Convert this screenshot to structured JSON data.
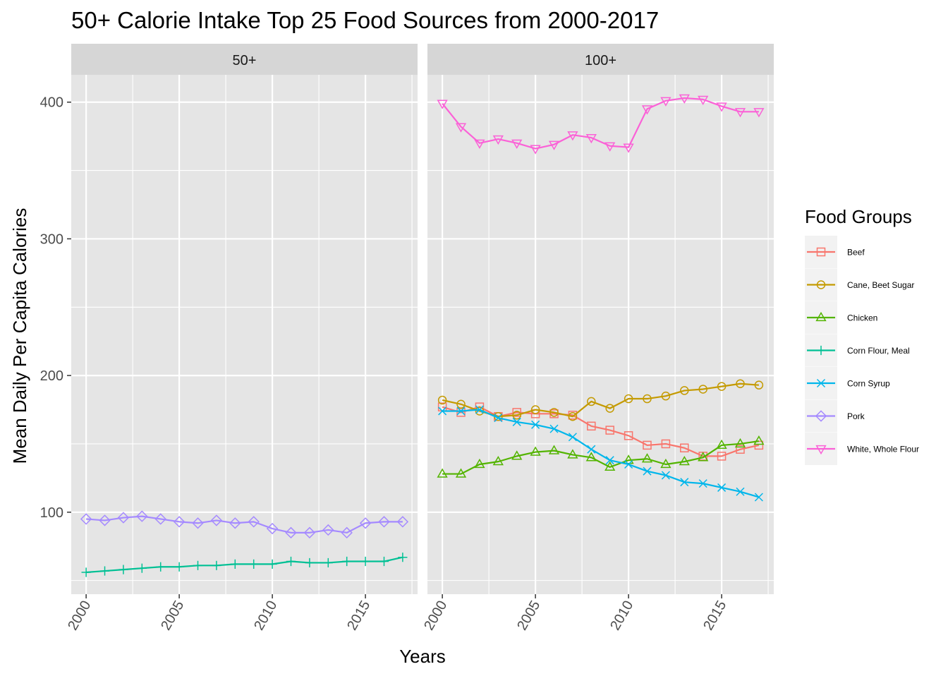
{
  "chart_data": {
    "type": "line",
    "title": "50+ Calorie Intake Top 25 Food Sources from 2000-2017",
    "xlabel": "Years",
    "ylabel": "Mean Daily Per Capita Calories",
    "xlim": [
      1999.2,
      2017.8
    ],
    "ylim": [
      40,
      420
    ],
    "x_ticks": [
      2000,
      2005,
      2010,
      2015
    ],
    "y_ticks": [
      100,
      200,
      300,
      400
    ],
    "grid": true,
    "legend": {
      "title": "Food Groups",
      "position": "right"
    },
    "facets": [
      "50+",
      "100+"
    ],
    "x": [
      2000,
      2001,
      2002,
      2003,
      2004,
      2005,
      2006,
      2007,
      2008,
      2009,
      2010,
      2011,
      2012,
      2013,
      2014,
      2015,
      2016,
      2017
    ],
    "series": [
      {
        "name": "Beef",
        "facet": "100+",
        "color": "#F8766D",
        "shape": "square",
        "values": [
          177,
          173,
          177,
          170,
          173,
          172,
          172,
          171,
          163,
          160,
          156,
          149,
          150,
          147,
          141,
          141,
          146,
          149
        ]
      },
      {
        "name": "Cane, Beet Sugar",
        "facet": "100+",
        "color": "#C49A00",
        "shape": "circle",
        "values": [
          182,
          179,
          174,
          170,
          171,
          175,
          173,
          170,
          181,
          176,
          183,
          183,
          185,
          189,
          190,
          192,
          194,
          193
        ]
      },
      {
        "name": "Chicken",
        "facet": "100+",
        "color": "#53B400",
        "shape": "triangle-up",
        "values": [
          128,
          128,
          135,
          137,
          141,
          144,
          145,
          142,
          140,
          133,
          138,
          139,
          135,
          137,
          140,
          149,
          150,
          152
        ]
      },
      {
        "name": "Corn Flour, Meal",
        "facet": "50+",
        "color": "#00C094",
        "shape": "plus",
        "values": [
          56,
          57,
          58,
          59,
          60,
          60,
          61,
          61,
          62,
          62,
          62,
          64,
          63,
          63,
          64,
          64,
          64,
          67
        ]
      },
      {
        "name": "Corn Syrup",
        "facet": "100+",
        "color": "#00B6EB",
        "shape": "cross",
        "values": [
          174,
          174,
          175,
          169,
          166,
          164,
          161,
          155,
          146,
          138,
          135,
          130,
          127,
          122,
          121,
          118,
          115,
          111
        ]
      },
      {
        "name": "Pork",
        "facet": "50+",
        "color": "#A58AFF",
        "shape": "diamond",
        "values": [
          95,
          94,
          96,
          97,
          95,
          93,
          92,
          94,
          92,
          93,
          88,
          85,
          85,
          87,
          85,
          92,
          93,
          93
        ]
      },
      {
        "name": "White, Whole Flour",
        "facet": "100+",
        "color": "#FB61D7",
        "shape": "triangle-down",
        "values": [
          399,
          382,
          370,
          373,
          370,
          366,
          369,
          376,
          374,
          368,
          367,
          395,
          401,
          403,
          402,
          397,
          393,
          393
        ]
      }
    ]
  }
}
